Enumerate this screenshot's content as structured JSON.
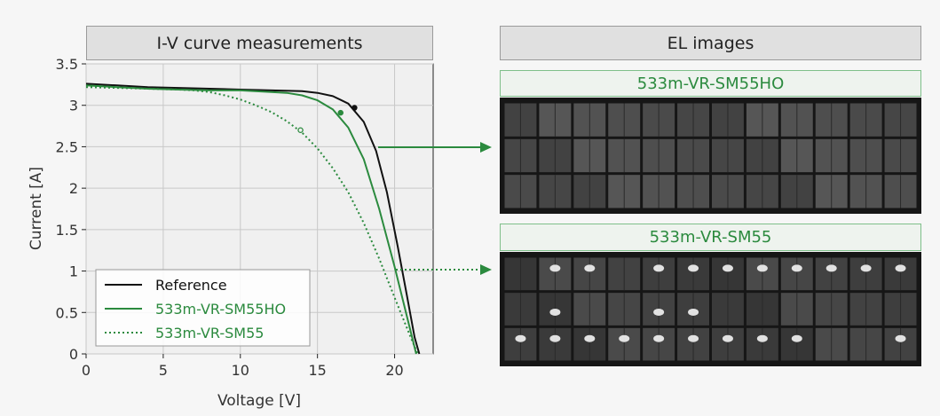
{
  "left_panel": {
    "title": "I-V curve measurements"
  },
  "right_panel": {
    "title": "EL images",
    "images": [
      {
        "label": "533m-VR-SM55HO",
        "label_color": "#2b8a3e",
        "hotspots": []
      },
      {
        "label": "533m-VR-SM55",
        "label_color": "#2b8a3e",
        "hotspots": [
          [
            0,
            1
          ],
          [
            0,
            2
          ],
          [
            0,
            4
          ],
          [
            0,
            5
          ],
          [
            0,
            6
          ],
          [
            0,
            7
          ],
          [
            0,
            8
          ],
          [
            0,
            9
          ],
          [
            0,
            10
          ],
          [
            0,
            11
          ],
          [
            1,
            1
          ],
          [
            1,
            4
          ],
          [
            1,
            5
          ],
          [
            2,
            0
          ],
          [
            2,
            1
          ],
          [
            2,
            2
          ],
          [
            2,
            3
          ],
          [
            2,
            4
          ],
          [
            2,
            5
          ],
          [
            2,
            6
          ],
          [
            2,
            8
          ],
          [
            2,
            11
          ],
          [
            2,
            7
          ]
        ]
      }
    ]
  },
  "colors": {
    "reference": "#111111",
    "green": "#2b8a3e"
  },
  "chart_data": {
    "type": "line",
    "title": "",
    "xlabel": "Voltage [V]",
    "ylabel": "Current [A]",
    "xlim": [
      0,
      22.5
    ],
    "ylim": [
      0,
      3.5
    ],
    "xticks": [
      "0",
      "5",
      "10",
      "15",
      "20"
    ],
    "yticks": [
      "0",
      "0.5",
      "1",
      "1.5",
      "2",
      "2.5",
      "3",
      "3.5"
    ],
    "grid": true,
    "legend_position": "bottom-left",
    "series": [
      {
        "name": "Reference",
        "color": "#111111",
        "style": "solid",
        "x": [
          0,
          2,
          4,
          6,
          8,
          10,
          12,
          14,
          15,
          16,
          17,
          18,
          18.8,
          19.5,
          20.2,
          20.8,
          21.3,
          21.6
        ],
        "y": [
          3.26,
          3.24,
          3.22,
          3.21,
          3.2,
          3.19,
          3.18,
          3.17,
          3.15,
          3.11,
          3.02,
          2.8,
          2.45,
          1.95,
          1.3,
          0.7,
          0.2,
          0.0
        ],
        "mpp": [
          17.4,
          2.97
        ]
      },
      {
        "name": "533m-VR-SM55HO",
        "color": "#2b8a3e",
        "style": "solid",
        "x": [
          0,
          2,
          4,
          6,
          8,
          10,
          12,
          13,
          14,
          15,
          16,
          17,
          18,
          19,
          20,
          20.8,
          21.4
        ],
        "y": [
          3.24,
          3.22,
          3.2,
          3.19,
          3.18,
          3.18,
          3.16,
          3.15,
          3.12,
          3.06,
          2.95,
          2.73,
          2.35,
          1.75,
          1.05,
          0.45,
          0.0
        ],
        "mpp": [
          16.5,
          2.91
        ]
      },
      {
        "name": "533m-VR-SM55",
        "color": "#2b8a3e",
        "style": "dotted",
        "x": [
          0,
          2,
          4,
          6,
          7,
          8,
          9,
          10,
          11,
          12,
          13,
          14,
          15,
          16,
          17,
          18,
          19,
          20,
          21,
          21.5
        ],
        "y": [
          3.22,
          3.21,
          3.2,
          3.19,
          3.18,
          3.16,
          3.12,
          3.07,
          3.0,
          2.92,
          2.81,
          2.67,
          2.48,
          2.24,
          1.95,
          1.58,
          1.15,
          0.68,
          0.22,
          0.0
        ],
        "mpp": [
          13.9,
          2.7
        ]
      }
    ]
  }
}
